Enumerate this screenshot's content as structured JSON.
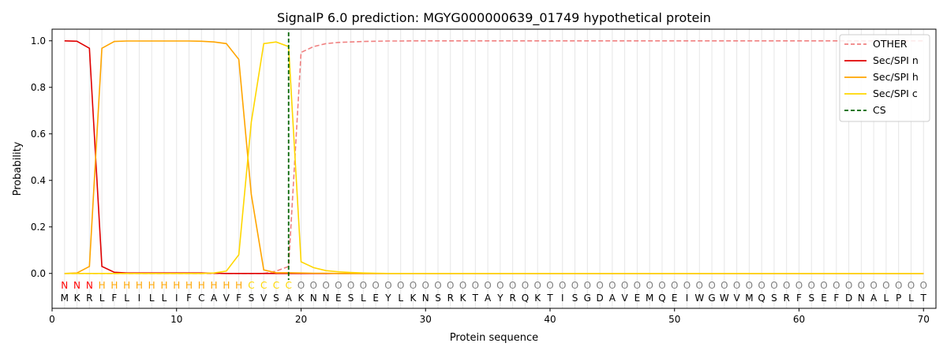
{
  "chart_data": {
    "type": "line",
    "title": "SignalP 6.0 prediction: MGYG000000639_01749 hypothetical protein",
    "xlabel": "Protein sequence",
    "ylabel": "Probability",
    "xlim": [
      0,
      71
    ],
    "ylim": [
      -0.15,
      1.05
    ],
    "xticks": [
      0,
      10,
      20,
      30,
      40,
      50,
      60,
      70
    ],
    "yticks": [
      0.0,
      0.2,
      0.4,
      0.6,
      0.8,
      1.0
    ],
    "ytick_labels": [
      "0.0",
      "0.2",
      "0.4",
      "0.6",
      "0.8",
      "1.0"
    ],
    "grid": "vertical lines at each residue",
    "legend_position": "top-right",
    "x": [
      1,
      2,
      3,
      4,
      5,
      6,
      7,
      8,
      9,
      10,
      11,
      12,
      13,
      14,
      15,
      16,
      17,
      18,
      19,
      20,
      21,
      22,
      23,
      24,
      25,
      26,
      27,
      28,
      29,
      30,
      31,
      32,
      33,
      34,
      35,
      36,
      37,
      38,
      39,
      40,
      41,
      42,
      43,
      44,
      45,
      46,
      47,
      48,
      49,
      50,
      51,
      52,
      53,
      54,
      55,
      56,
      57,
      58,
      59,
      60,
      61,
      62,
      63,
      64,
      65,
      66,
      67,
      68,
      69,
      70
    ],
    "sequence": [
      "M",
      "K",
      "R",
      "L",
      "F",
      "L",
      "I",
      "L",
      "L",
      "I",
      "F",
      "C",
      "A",
      "V",
      "F",
      "S",
      "V",
      "S",
      "A",
      "K",
      "N",
      "N",
      "E",
      "S",
      "L",
      "E",
      "Y",
      "L",
      "K",
      "N",
      "S",
      "R",
      "K",
      "T",
      "A",
      "Y",
      "R",
      "Q",
      "K",
      "T",
      "I",
      "S",
      "G",
      "D",
      "A",
      "V",
      "E",
      "M",
      "Q",
      "E",
      "I",
      "W",
      "G",
      "W",
      "V",
      "M",
      "Q",
      "S",
      "R",
      "F",
      "S",
      "E",
      "F",
      "D",
      "N",
      "A",
      "L",
      "P",
      "L",
      "T"
    ],
    "region_labels": [
      "N",
      "N",
      "N",
      "H",
      "H",
      "H",
      "H",
      "H",
      "H",
      "H",
      "H",
      "H",
      "H",
      "H",
      "H",
      "C",
      "C",
      "C",
      "C",
      "O",
      "O",
      "O",
      "O",
      "O",
      "O",
      "O",
      "O",
      "O",
      "O",
      "O",
      "O",
      "O",
      "O",
      "O",
      "O",
      "O",
      "O",
      "O",
      "O",
      "O",
      "O",
      "O",
      "O",
      "O",
      "O",
      "O",
      "O",
      "O",
      "O",
      "O",
      "O",
      "O",
      "O",
      "O",
      "O",
      "O",
      "O",
      "O",
      "O",
      "O",
      "O",
      "O",
      "O",
      "O",
      "O",
      "O",
      "O",
      "O",
      "O",
      "O"
    ],
    "region_colors": {
      "N": "#ff0000",
      "H": "#ffa500",
      "C": "#ffd700",
      "O": "#808080"
    },
    "series": [
      {
        "name": "OTHER",
        "color": "#f08080",
        "dash": "dashed",
        "values": [
          0.0,
          0.0,
          0.0,
          0.0,
          0.0,
          0.0,
          0.0,
          0.0,
          0.0,
          0.0,
          0.0,
          0.0,
          0.0,
          0.0,
          0.0,
          0.0,
          0.0,
          0.01,
          0.03,
          0.95,
          0.975,
          0.988,
          0.993,
          0.995,
          0.997,
          0.998,
          0.999,
          0.999,
          1.0,
          1.0,
          1.0,
          1.0,
          1.0,
          1.0,
          1.0,
          1.0,
          1.0,
          1.0,
          1.0,
          1.0,
          1.0,
          1.0,
          1.0,
          1.0,
          1.0,
          1.0,
          1.0,
          1.0,
          1.0,
          1.0,
          1.0,
          1.0,
          1.0,
          1.0,
          1.0,
          1.0,
          1.0,
          1.0,
          1.0,
          1.0,
          1.0,
          1.0,
          1.0,
          1.0,
          1.0,
          1.0,
          1.0,
          1.0,
          1.0,
          1.0
        ]
      },
      {
        "name": "Sec/SPI n",
        "color": "#e00000",
        "dash": "solid",
        "values": [
          1.0,
          0.998,
          0.968,
          0.03,
          0.005,
          0.002,
          0.002,
          0.002,
          0.002,
          0.002,
          0.002,
          0.002,
          0.001,
          0.0,
          0.0,
          0.0,
          0.0,
          0.0,
          0.0,
          0.0,
          0.0,
          0.0,
          0.0,
          0.0,
          0.0,
          0.0,
          0.0,
          0.0,
          0.0,
          0.0,
          0.0,
          0.0,
          0.0,
          0.0,
          0.0,
          0.0,
          0.0,
          0.0,
          0.0,
          0.0,
          0.0,
          0.0,
          0.0,
          0.0,
          0.0,
          0.0,
          0.0,
          0.0,
          0.0,
          0.0,
          0.0,
          0.0,
          0.0,
          0.0,
          0.0,
          0.0,
          0.0,
          0.0,
          0.0,
          0.0,
          0.0,
          0.0,
          0.0,
          0.0,
          0.0,
          0.0,
          0.0,
          0.0,
          0.0,
          0.0
        ]
      },
      {
        "name": "Sec/SPI h",
        "color": "#ffa500",
        "dash": "solid",
        "values": [
          0.0,
          0.002,
          0.03,
          0.968,
          0.997,
          0.999,
          0.999,
          0.999,
          0.999,
          0.999,
          0.999,
          0.998,
          0.995,
          0.988,
          0.92,
          0.34,
          0.015,
          0.003,
          0.003,
          0.002,
          0.001,
          0.001,
          0.0,
          0.0,
          0.0,
          0.0,
          0.0,
          0.0,
          0.0,
          0.0,
          0.0,
          0.0,
          0.0,
          0.0,
          0.0,
          0.0,
          0.0,
          0.0,
          0.0,
          0.0,
          0.0,
          0.0,
          0.0,
          0.0,
          0.0,
          0.0,
          0.0,
          0.0,
          0.0,
          0.0,
          0.0,
          0.0,
          0.0,
          0.0,
          0.0,
          0.0,
          0.0,
          0.0,
          0.0,
          0.0,
          0.0,
          0.0,
          0.0,
          0.0,
          0.0,
          0.0,
          0.0,
          0.0,
          0.0,
          0.0
        ]
      },
      {
        "name": "Sec/SPI c",
        "color": "#ffd700",
        "dash": "solid",
        "values": [
          0.0,
          0.0,
          0.0,
          0.0,
          0.0,
          0.0,
          0.0,
          0.0,
          0.0,
          0.0,
          0.0,
          0.0,
          0.002,
          0.01,
          0.08,
          0.65,
          0.988,
          0.995,
          0.975,
          0.05,
          0.025,
          0.012,
          0.007,
          0.004,
          0.002,
          0.001,
          0.0,
          0.0,
          0.0,
          0.0,
          0.0,
          0.0,
          0.0,
          0.0,
          0.0,
          0.0,
          0.0,
          0.0,
          0.0,
          0.0,
          0.0,
          0.0,
          0.0,
          0.0,
          0.0,
          0.0,
          0.0,
          0.0,
          0.0,
          0.0,
          0.0,
          0.0,
          0.0,
          0.0,
          0.0,
          0.0,
          0.0,
          0.0,
          0.0,
          0.0,
          0.0,
          0.0,
          0.0,
          0.0,
          0.0,
          0.0,
          0.0,
          0.0,
          0.0,
          0.0
        ]
      },
      {
        "name": "CS",
        "color": "#006400",
        "dash": "dashed",
        "vertical_at": 19
      }
    ]
  }
}
